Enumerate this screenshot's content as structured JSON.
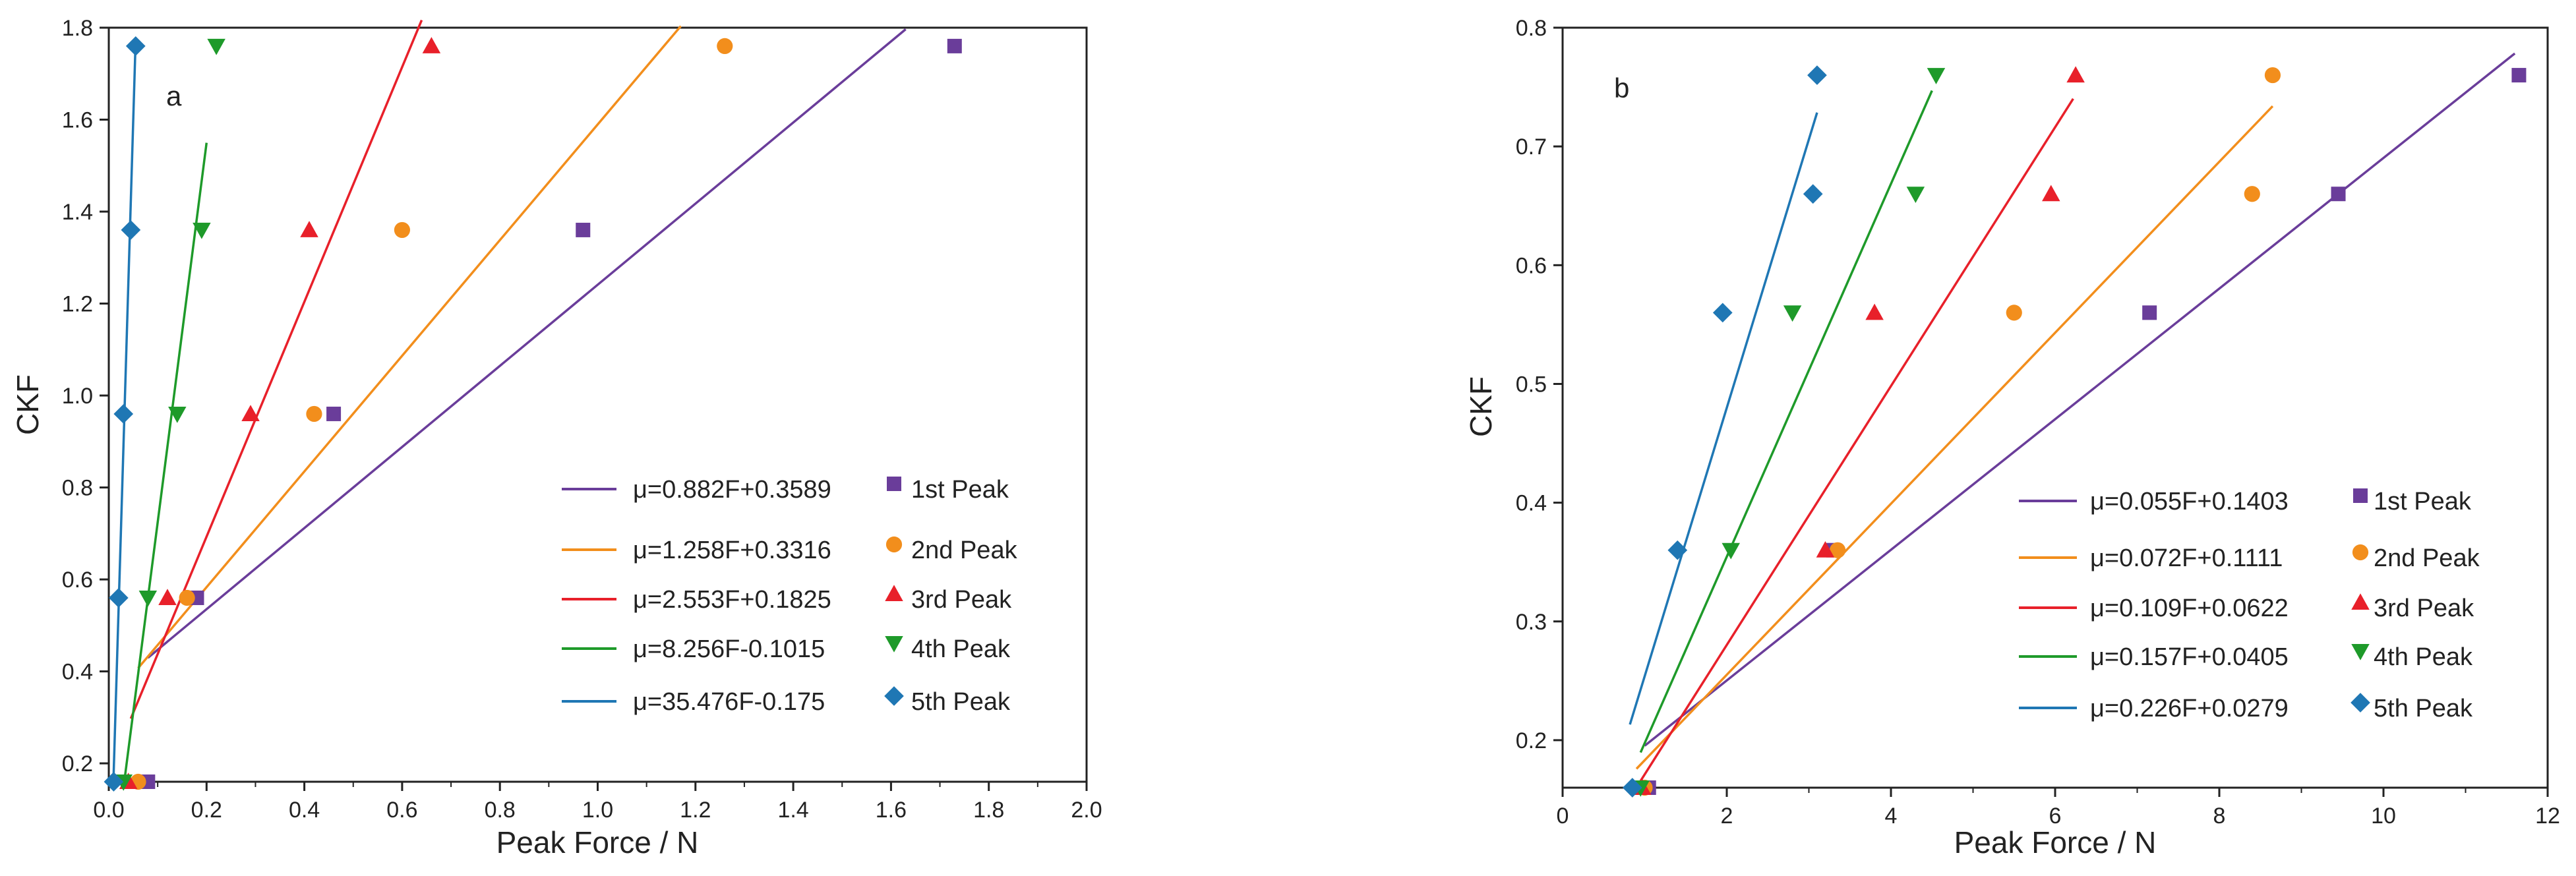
{
  "chart_data": [
    {
      "id": "a",
      "type": "scatter",
      "panel_label": "a",
      "xlabel": "Peak Force / N",
      "ylabel": "CKF",
      "xlim": [
        0.0,
        2.0
      ],
      "ylim": [
        0.16,
        1.8
      ],
      "xticks": [
        0.0,
        0.2,
        0.4,
        0.6,
        0.8,
        1.0,
        1.2,
        1.4,
        1.6,
        1.8,
        2.0
      ],
      "xtick_labels": [
        "0.0",
        "0.2",
        "0.4",
        "0.6",
        "0.8",
        "1.0",
        "1.2",
        "1.4",
        "1.6",
        "1.8",
        "2.0"
      ],
      "yticks": [
        0.2,
        0.4,
        0.6,
        0.8,
        1.0,
        1.2,
        1.4,
        1.6,
        1.8
      ],
      "ytick_labels": [
        "0.2",
        "0.4",
        "0.6",
        "0.8",
        "1.0",
        "1.2",
        "1.4",
        "1.6",
        "1.8"
      ],
      "legend_position": "lower-right",
      "series": [
        {
          "name": "1st Peak",
          "fit_label": "μ=0.882F+0.3589",
          "color": "#6a3d9a",
          "marker": "square",
          "points": [
            [
              0.08,
              0.16
            ],
            [
              0.18,
              0.56
            ],
            [
              0.46,
              0.96
            ],
            [
              0.97,
              1.36
            ],
            [
              1.73,
              1.76
            ]
          ],
          "fit_x": [
            0.08,
            1.63
          ]
        },
        {
          "name": "2nd Peak",
          "fit_label": "μ=1.258F+0.3316",
          "color": "#f28e1c",
          "marker": "circle",
          "points": [
            [
              0.06,
              0.16
            ],
            [
              0.16,
              0.56
            ],
            [
              0.42,
              0.96
            ],
            [
              0.6,
              1.36
            ],
            [
              1.26,
              1.76
            ]
          ],
          "fit_x": [
            0.06,
            1.17
          ]
        },
        {
          "name": "3rd Peak",
          "fit_label": "μ=2.553F+0.1825",
          "color": "#e8202a",
          "marker": "triangle-up",
          "points": [
            [
              0.04,
              0.16
            ],
            [
              0.12,
              0.56
            ],
            [
              0.29,
              0.96
            ],
            [
              0.41,
              1.36
            ],
            [
              0.66,
              1.76
            ]
          ],
          "fit_x": [
            0.045,
            0.64
          ]
        },
        {
          "name": "4th Peak",
          "fit_label": "μ=8.256F-0.1015",
          "color": "#1e9a2a",
          "marker": "triangle-down",
          "points": [
            [
              0.03,
              0.16
            ],
            [
              0.08,
              0.56
            ],
            [
              0.14,
              0.96
            ],
            [
              0.19,
              1.36
            ],
            [
              0.22,
              1.76
            ]
          ],
          "fit_x": [
            0.032,
            0.2
          ]
        },
        {
          "name": "5th Peak",
          "fit_label": "μ=35.476F-0.175",
          "color": "#1f77b4",
          "marker": "diamond",
          "points": [
            [
              0.01,
              0.16
            ],
            [
              0.02,
              0.56
            ],
            [
              0.03,
              0.96
            ],
            [
              0.045,
              1.36
            ],
            [
              0.055,
              1.76
            ]
          ],
          "fit_x": [
            0.0095,
            0.0545
          ]
        }
      ]
    },
    {
      "id": "b",
      "type": "scatter",
      "panel_label": "b",
      "xlabel": "Peak Force / N",
      "ylabel": "CKF",
      "xlim": [
        0,
        12
      ],
      "ylim": [
        0.16,
        0.8
      ],
      "xticks": [
        0,
        2,
        4,
        6,
        8,
        10,
        12
      ],
      "xtick_labels": [
        "0",
        "2",
        "4",
        "6",
        "8",
        "10",
        "12"
      ],
      "yticks": [
        0.2,
        0.3,
        0.4,
        0.5,
        0.6,
        0.7,
        0.8
      ],
      "ytick_labels": [
        "0.2",
        "0.3",
        "0.4",
        "0.5",
        "0.6",
        "0.7",
        "0.8"
      ],
      "legend_position": "lower-right",
      "series": [
        {
          "name": "1st Peak",
          "fit_label": "μ=0.055F+0.1403",
          "color": "#6a3d9a",
          "marker": "square",
          "points": [
            [
              1.05,
              0.16
            ],
            [
              3.3,
              0.36
            ],
            [
              7.15,
              0.56
            ],
            [
              9.45,
              0.66
            ],
            [
              11.65,
              0.76
            ]
          ],
          "fit_x": [
            1.0,
            11.6
          ]
        },
        {
          "name": "2nd Peak",
          "fit_label": "μ=0.072F+0.1111",
          "color": "#f28e1c",
          "marker": "circle",
          "points": [
            [
              1.0,
              0.16
            ],
            [
              3.35,
              0.36
            ],
            [
              5.5,
              0.56
            ],
            [
              8.4,
              0.66
            ],
            [
              8.65,
              0.76
            ]
          ],
          "fit_x": [
            0.9,
            8.65
          ]
        },
        {
          "name": "3rd Peak",
          "fit_label": "μ=0.109F+0.0622",
          "color": "#e8202a",
          "marker": "triangle-up",
          "points": [
            [
              0.97,
              0.16
            ],
            [
              3.2,
              0.36
            ],
            [
              3.8,
              0.56
            ],
            [
              5.95,
              0.66
            ],
            [
              6.25,
              0.76
            ]
          ],
          "fit_x": [
            0.95,
            6.22
          ]
        },
        {
          "name": "4th Peak",
          "fit_label": "μ=0.157F+0.0405",
          "color": "#1e9a2a",
          "marker": "triangle-down",
          "points": [
            [
              0.95,
              0.16
            ],
            [
              2.05,
              0.36
            ],
            [
              2.8,
              0.56
            ],
            [
              4.3,
              0.66
            ],
            [
              4.55,
              0.76
            ]
          ],
          "fit_x": [
            0.95,
            4.5
          ]
        },
        {
          "name": "5th Peak",
          "fit_label": "μ=0.226F+0.0279",
          "color": "#1f77b4",
          "marker": "diamond",
          "points": [
            [
              0.85,
              0.16
            ],
            [
              1.4,
              0.36
            ],
            [
              1.95,
              0.56
            ],
            [
              3.05,
              0.66
            ],
            [
              3.1,
              0.76
            ]
          ],
          "fit_x": [
            0.82,
            3.1
          ]
        }
      ]
    }
  ]
}
